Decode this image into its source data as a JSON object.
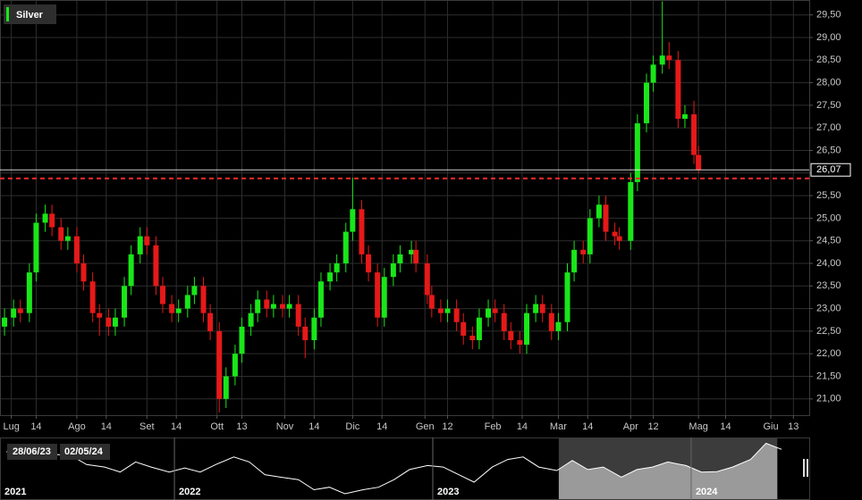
{
  "chart_data": [
    {
      "type": "candlestick",
      "name": "Silver",
      "legend": "top-left",
      "grid": true,
      "up_color": "#19e619",
      "down_color": "#e61919",
      "x": [
        "30/06/23",
        "04/07/23",
        "07/07/23",
        "11/07/23",
        "14/07/23",
        "18/07/23",
        "21/07/23",
        "25/07/23",
        "28/07/23",
        "01/08/23",
        "04/08/23",
        "08/08/23",
        "11/08/23",
        "15/08/23",
        "18/08/23",
        "22/08/23",
        "25/08/23",
        "29/08/23",
        "01/09/23",
        "05/09/23",
        "08/09/23",
        "12/09/23",
        "15/09/23",
        "19/09/23",
        "22/09/23",
        "26/09/23",
        "29/09/23",
        "03/10/23",
        "06/10/23",
        "10/10/23",
        "13/10/23",
        "17/10/23",
        "20/10/23",
        "24/10/23",
        "27/10/23",
        "31/10/23",
        "03/11/23",
        "07/11/23",
        "10/11/23",
        "14/11/23",
        "17/11/23",
        "21/11/23",
        "24/11/23",
        "28/11/23",
        "01/12/23",
        "05/12/23",
        "08/12/23",
        "12/12/23",
        "15/12/23",
        "19/12/23",
        "22/12/23",
        "27/12/23",
        "29/12/23",
        "03/01/24",
        "05/01/24",
        "09/01/24",
        "12/01/24",
        "16/01/24",
        "19/01/24",
        "23/01/24",
        "26/01/24",
        "30/01/24",
        "02/02/24",
        "06/02/24",
        "09/02/24",
        "13/02/24",
        "16/02/24",
        "20/02/24",
        "23/02/24",
        "27/02/24",
        "01/03/24",
        "05/03/24",
        "08/03/24",
        "12/03/24",
        "15/03/24",
        "19/03/24",
        "22/03/24",
        "26/03/24",
        "28/03/24",
        "02/04/24",
        "05/04/24",
        "09/04/24",
        "12/04/24",
        "16/04/24",
        "19/04/24",
        "23/04/24",
        "26/04/24",
        "30/04/24",
        "02/05/24"
      ],
      "open": [
        22.6,
        22.8,
        23.0,
        22.9,
        23.8,
        24.9,
        25.1,
        24.8,
        24.5,
        24.6,
        24.0,
        23.6,
        22.9,
        22.8,
        22.6,
        22.8,
        23.5,
        24.2,
        24.6,
        24.4,
        23.5,
        23.1,
        22.9,
        23.0,
        23.3,
        23.5,
        22.9,
        22.5,
        21.0,
        21.5,
        22.0,
        22.6,
        22.9,
        23.2,
        23.0,
        23.1,
        23.0,
        23.1,
        22.6,
        22.3,
        22.8,
        23.6,
        23.8,
        24.0,
        24.7,
        25.2,
        24.2,
        23.8,
        22.8,
        23.7,
        24.0,
        24.2,
        24.3,
        24.0,
        23.3,
        23.0,
        22.9,
        23.0,
        22.7,
        22.4,
        22.3,
        22.8,
        23.0,
        22.9,
        22.5,
        22.3,
        22.2,
        22.9,
        23.1,
        22.9,
        22.5,
        22.7,
        23.8,
        24.3,
        24.2,
        25.0,
        25.3,
        24.7,
        24.6,
        24.5,
        25.8,
        27.1,
        28.0,
        28.4,
        28.6,
        28.5,
        27.2,
        27.3,
        26.4
      ],
      "high": [
        23.0,
        23.2,
        23.2,
        24.0,
        25.1,
        25.3,
        25.3,
        25.0,
        24.8,
        24.8,
        24.2,
        23.8,
        23.1,
        23.0,
        23.0,
        23.7,
        24.4,
        24.8,
        24.8,
        24.6,
        23.7,
        23.3,
        23.2,
        23.5,
        23.7,
        23.7,
        23.1,
        22.7,
        21.7,
        22.2,
        22.8,
        23.1,
        23.4,
        23.4,
        23.3,
        23.3,
        23.3,
        23.3,
        22.8,
        23.0,
        23.8,
        24.0,
        24.2,
        24.9,
        25.9,
        25.4,
        24.4,
        24.0,
        23.9,
        24.2,
        24.4,
        24.5,
        24.5,
        24.2,
        23.5,
        23.2,
        23.2,
        23.2,
        22.9,
        22.6,
        23.0,
        23.2,
        23.2,
        23.1,
        22.7,
        22.5,
        23.1,
        23.3,
        23.3,
        23.1,
        22.9,
        24.0,
        24.5,
        24.5,
        25.2,
        25.5,
        25.5,
        24.9,
        24.8,
        26.0,
        27.3,
        28.2,
        28.6,
        29.8,
        28.9,
        28.7,
        27.5,
        27.6,
        26.6
      ],
      "low": [
        22.4,
        22.6,
        22.7,
        22.7,
        23.6,
        24.7,
        24.6,
        24.3,
        24.3,
        23.8,
        23.4,
        22.7,
        22.4,
        22.4,
        22.4,
        22.6,
        23.3,
        24.0,
        24.2,
        23.3,
        22.9,
        22.7,
        22.7,
        22.8,
        23.1,
        22.7,
        22.3,
        20.7,
        20.8,
        21.3,
        21.8,
        22.4,
        22.7,
        22.8,
        22.8,
        22.8,
        22.8,
        22.4,
        21.9,
        22.1,
        22.6,
        23.4,
        23.6,
        23.8,
        24.5,
        24.0,
        23.6,
        22.6,
        22.6,
        23.5,
        23.8,
        24.0,
        23.8,
        23.1,
        22.8,
        22.7,
        22.7,
        22.5,
        22.2,
        22.1,
        22.1,
        22.6,
        22.7,
        22.3,
        22.1,
        22.0,
        22.0,
        22.7,
        22.7,
        22.3,
        22.3,
        22.5,
        23.6,
        24.0,
        24.0,
        24.8,
        24.5,
        24.4,
        24.3,
        24.3,
        25.6,
        26.9,
        27.8,
        28.2,
        28.3,
        27.0,
        27.0,
        26.2,
        26.0
      ],
      "close": [
        22.8,
        23.0,
        22.9,
        23.8,
        24.9,
        25.1,
        24.8,
        24.5,
        24.6,
        24.0,
        23.6,
        22.9,
        22.8,
        22.6,
        22.8,
        23.5,
        24.2,
        24.6,
        24.4,
        23.5,
        23.1,
        22.9,
        23.0,
        23.3,
        23.5,
        22.9,
        22.5,
        21.0,
        21.5,
        22.0,
        22.6,
        22.9,
        23.2,
        23.0,
        23.1,
        23.0,
        23.1,
        22.6,
        22.3,
        22.8,
        23.6,
        23.8,
        24.0,
        24.7,
        25.2,
        24.2,
        23.8,
        22.8,
        23.7,
        24.0,
        24.2,
        24.3,
        24.0,
        23.3,
        23.0,
        22.9,
        23.0,
        22.7,
        22.4,
        22.3,
        22.8,
        23.0,
        22.9,
        22.5,
        22.3,
        22.2,
        22.9,
        23.1,
        22.9,
        22.5,
        22.7,
        23.8,
        24.3,
        24.2,
        25.0,
        25.3,
        24.7,
        24.6,
        24.5,
        25.8,
        27.1,
        28.0,
        28.4,
        28.6,
        28.5,
        27.2,
        27.3,
        26.4,
        26.07
      ],
      "xlim": [
        "28/06/23",
        "20/06/24"
      ],
      "xticks": [
        {
          "value": "03/07/23",
          "label": "Lug"
        },
        {
          "value": "14/07/23",
          "label": "14"
        },
        {
          "value": "01/08/23",
          "label": "Ago"
        },
        {
          "value": "14/08/23",
          "label": "14"
        },
        {
          "value": "01/09/23",
          "label": "Set"
        },
        {
          "value": "14/09/23",
          "label": "14"
        },
        {
          "value": "02/10/23",
          "label": "Ott"
        },
        {
          "value": "13/10/23",
          "label": "13"
        },
        {
          "value": "01/11/23",
          "label": "Nov"
        },
        {
          "value": "14/11/23",
          "label": "14"
        },
        {
          "value": "01/12/23",
          "label": "Dic"
        },
        {
          "value": "14/12/23",
          "label": "14"
        },
        {
          "value": "02/01/24",
          "label": "Gen"
        },
        {
          "value": "12/01/24",
          "label": "12"
        },
        {
          "value": "01/02/24",
          "label": "Feb"
        },
        {
          "value": "14/02/24",
          "label": "14"
        },
        {
          "value": "01/03/24",
          "label": "Mar"
        },
        {
          "value": "14/03/24",
          "label": "14"
        },
        {
          "value": "02/04/24",
          "label": "Apr"
        },
        {
          "value": "12/04/24",
          "label": "12"
        },
        {
          "value": "02/05/24",
          "label": "Mag"
        },
        {
          "value": "14/05/24",
          "label": "14"
        },
        {
          "value": "03/06/24",
          "label": "Giu"
        },
        {
          "value": "13/06/24",
          "label": "13"
        }
      ],
      "ylim": [
        20.64,
        29.83
      ],
      "yticks": [
        {
          "value": 21.0,
          "label": "21,00"
        },
        {
          "value": 21.5,
          "label": "21,50"
        },
        {
          "value": 22.0,
          "label": "22,00"
        },
        {
          "value": 22.5,
          "label": "22,50"
        },
        {
          "value": 23.0,
          "label": "23,00"
        },
        {
          "value": 23.5,
          "label": "23,50"
        },
        {
          "value": 24.0,
          "label": "24,00"
        },
        {
          "value": 24.5,
          "label": "24,50"
        },
        {
          "value": 25.0,
          "label": "25,00"
        },
        {
          "value": 25.5,
          "label": "25,50"
        },
        {
          "value": 26.0,
          "label": "26,00"
        },
        {
          "value": 26.5,
          "label": "26,50"
        },
        {
          "value": 27.0,
          "label": "27,00"
        },
        {
          "value": 27.5,
          "label": "27,50"
        },
        {
          "value": 28.0,
          "label": "28,00"
        },
        {
          "value": 28.5,
          "label": "28,50"
        },
        {
          "value": 29.0,
          "label": "29,00"
        },
        {
          "value": 29.5,
          "label": "29,50"
        }
      ],
      "price_line": {
        "value": 26.07,
        "label": "26,07",
        "color": "#ffffff"
      },
      "reference_line": {
        "value": 25.88,
        "color": "#ff2a2a"
      }
    },
    {
      "type": "area",
      "color": "#ffffff",
      "x": [
        2021.35,
        2021.41,
        2021.48,
        2021.54,
        2021.6,
        2021.66,
        2021.73,
        2021.79,
        2021.85,
        2021.91,
        2021.98,
        2022.04,
        2022.1,
        2022.16,
        2022.23,
        2022.29,
        2022.35,
        2022.41,
        2022.48,
        2022.54,
        2022.6,
        2022.66,
        2022.73,
        2022.79,
        2022.85,
        2022.91,
        2022.98,
        2023.04,
        2023.1,
        2023.16,
        2023.23,
        2023.29,
        2023.35,
        2023.41,
        2023.48,
        2023.54,
        2023.6,
        2023.66,
        2023.73,
        2023.79,
        2023.85,
        2023.91,
        2023.98,
        2024.04,
        2024.1,
        2024.16,
        2024.23,
        2024.29,
        2024.35
      ],
      "values": [
        26.5,
        27.5,
        27.8,
        26.0,
        25.8,
        24.0,
        23.5,
        22.5,
        24.5,
        23.5,
        22.5,
        23.3,
        22.5,
        24.0,
        25.5,
        24.5,
        22.0,
        21.5,
        21.0,
        19.0,
        19.5,
        18.2,
        19.0,
        19.5,
        21.0,
        23.0,
        23.8,
        23.5,
        22.0,
        20.5,
        23.5,
        25.0,
        25.5,
        23.5,
        22.8,
        24.8,
        23.0,
        23.5,
        21.5,
        23.0,
        23.5,
        24.5,
        23.8,
        22.5,
        22.6,
        23.5,
        25.0,
        28.2,
        27.0
      ],
      "xlim": [
        2021.325,
        2024.457
      ],
      "xticks": [
        2021,
        2022,
        2023,
        2024
      ],
      "ylim": [
        17.5,
        29
      ]
    }
  ]
}
